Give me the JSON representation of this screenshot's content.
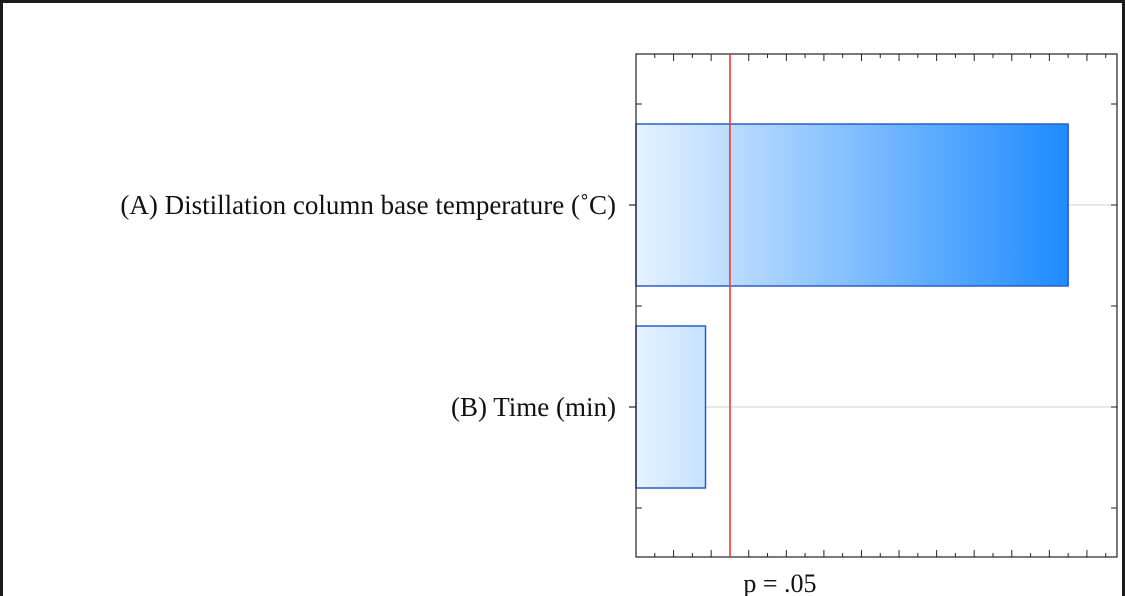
{
  "chart_data": {
    "type": "bar",
    "orientation": "horizontal",
    "categories": [
      "(A) Distillation column base temperature (˚C)",
      "(B) Time (min)"
    ],
    "values": [
      11.5,
      1.85
    ],
    "reference_line": {
      "value": 2.5,
      "label": "p = .05",
      "color": "#ff3333"
    },
    "xlim": [
      0,
      12.8
    ],
    "title": "",
    "xlabel": "",
    "ylabel": "",
    "grid": true,
    "bar_color": "#1e8bff",
    "bar_edge_color": "#2a5fc8"
  }
}
